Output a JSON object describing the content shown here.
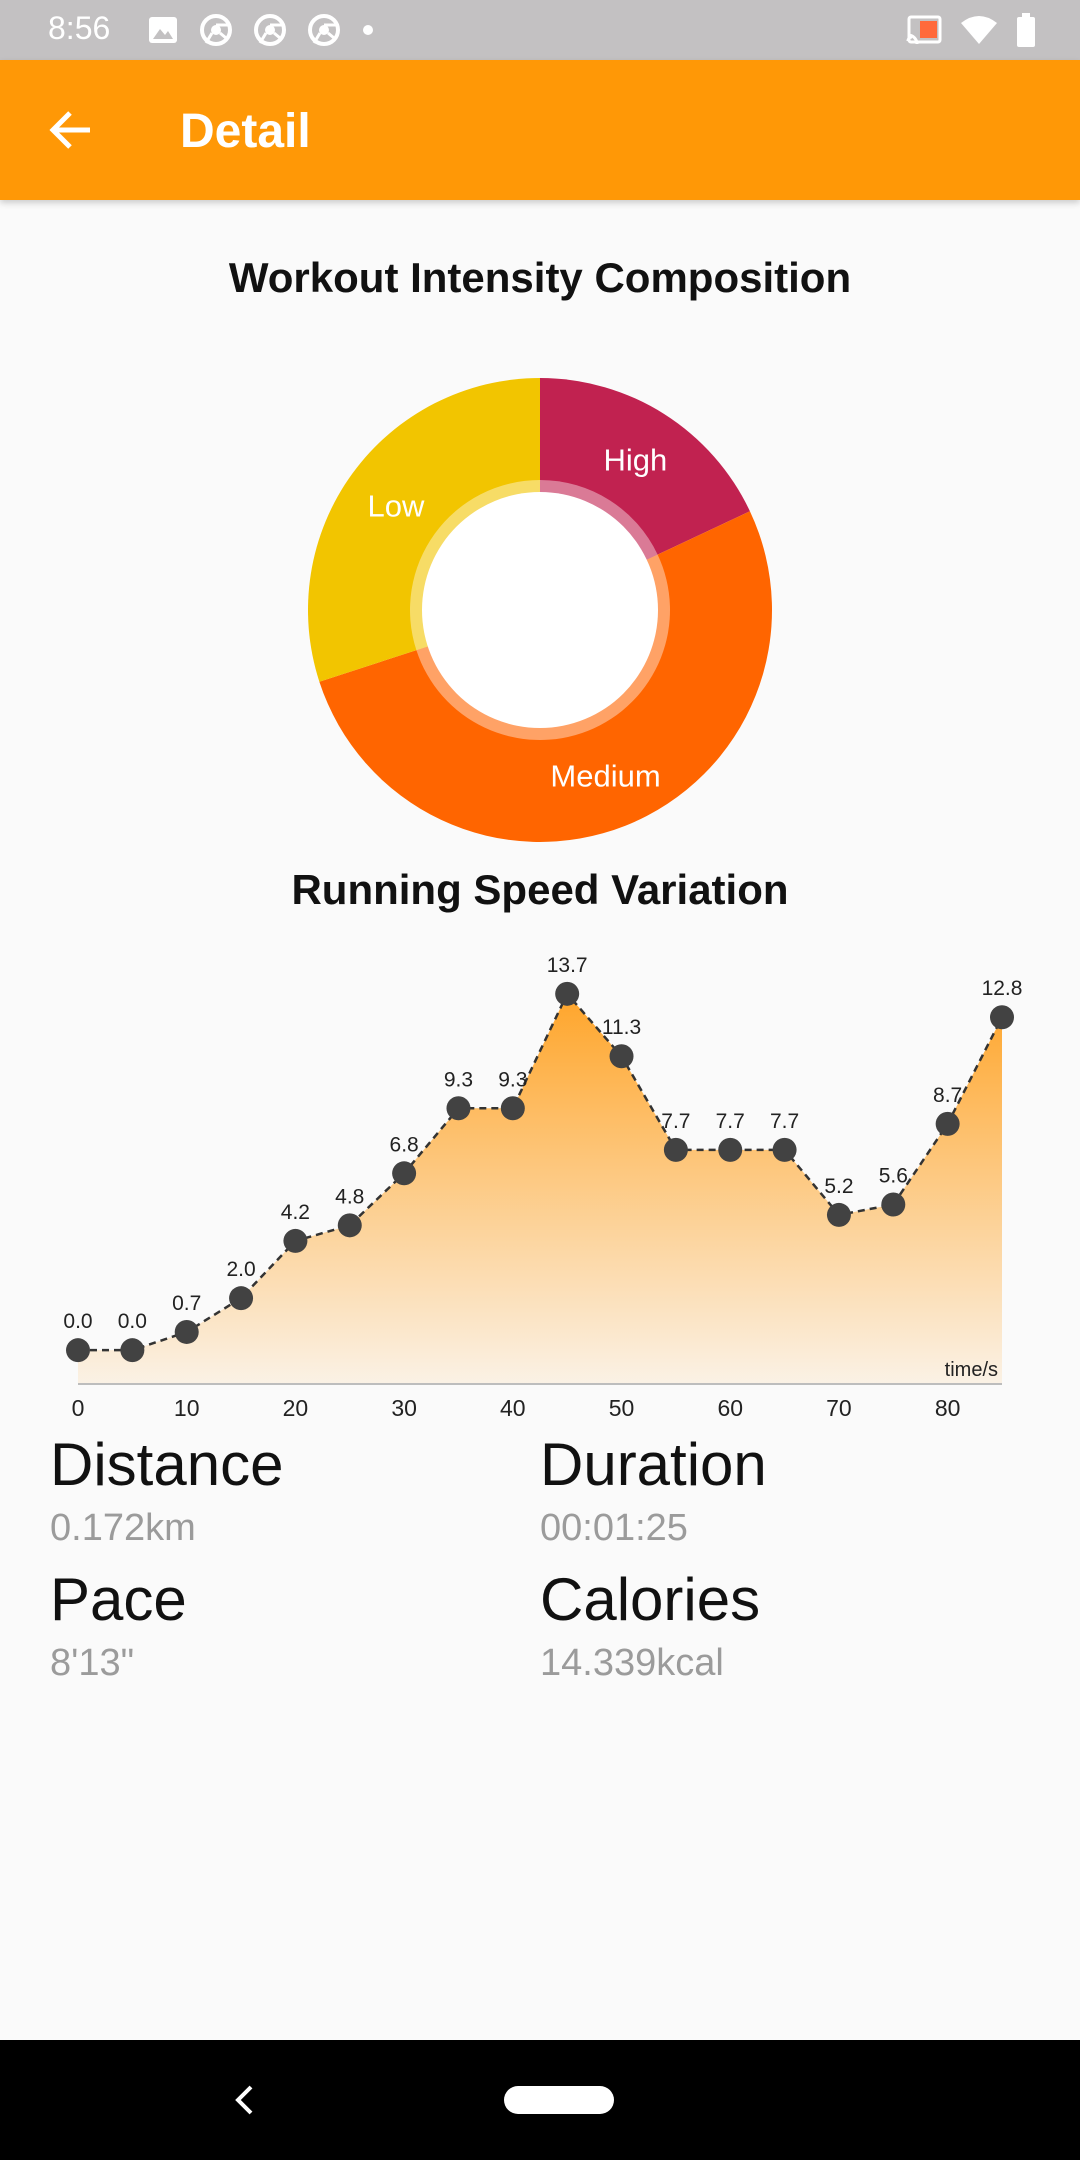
{
  "status_bar": {
    "time": "8:56",
    "left_icons": [
      "image-icon",
      "chrome-icon",
      "chrome-icon",
      "chrome-icon",
      "dot-icon"
    ],
    "right_icons": [
      "cast-icon",
      "wifi-icon",
      "battery-icon"
    ]
  },
  "app_bar": {
    "title": "Detail",
    "background": "#ff9806"
  },
  "chart_data": [
    {
      "type": "pie",
      "title": "Workout Intensity Composition",
      "labels": [
        "High",
        "Medium",
        "Low"
      ],
      "values": [
        18,
        52,
        30
      ],
      "colors": [
        "#c12250",
        "#ff6500",
        "#f2c500"
      ]
    },
    {
      "type": "area",
      "title": "Running Speed Variation",
      "xlabel": "time/s",
      "x": [
        0,
        5,
        10,
        15,
        20,
        25,
        30,
        35,
        40,
        45,
        50,
        55,
        60,
        65,
        70,
        75,
        80,
        85
      ],
      "values": [
        0.0,
        0.0,
        0.7,
        2.0,
        4.2,
        4.8,
        6.8,
        9.3,
        9.3,
        13.7,
        11.3,
        7.7,
        7.7,
        7.7,
        5.2,
        5.6,
        8.7,
        12.8
      ],
      "point_labels": [
        "0.0",
        "0.0",
        "0.7",
        "2.0",
        "4.2",
        "4.8",
        "6.8",
        "9.3",
        "9.3",
        "13.7",
        "11.3",
        "7.7",
        "7.7",
        "7.7",
        "5.2",
        "5.6",
        "8.7",
        "12.8"
      ],
      "x_ticks": [
        "0",
        "10",
        "20",
        "30",
        "40",
        "50",
        "60",
        "70",
        "80"
      ],
      "x_tick_values": [
        0,
        10,
        20,
        30,
        40,
        50,
        60,
        70,
        80
      ],
      "xlim": [
        0,
        85
      ],
      "ylim": [
        -1.3,
        15
      ],
      "grid": false,
      "fill_color": "#ffa52a",
      "point_color": "#424242"
    }
  ],
  "stats": {
    "distance": {
      "label": "Distance",
      "value": "0.172km"
    },
    "duration": {
      "label": "Duration",
      "value": "00:01:25"
    },
    "pace": {
      "label": "Pace",
      "value": "8'13\""
    },
    "calories": {
      "label": "Calories",
      "value": "14.339kcal"
    }
  }
}
